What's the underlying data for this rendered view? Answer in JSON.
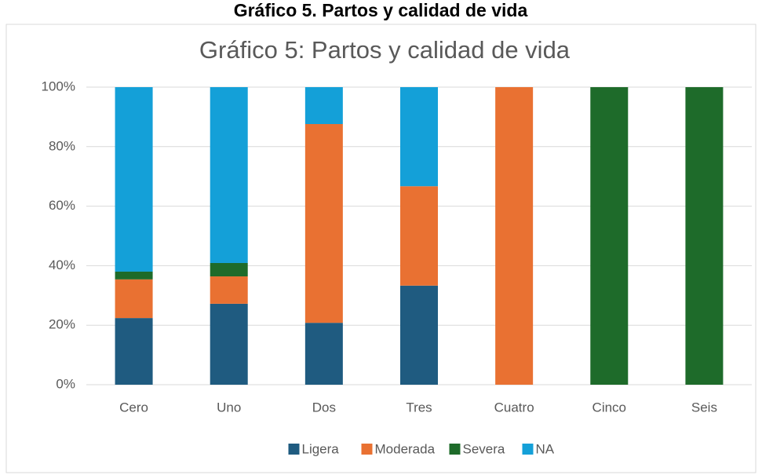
{
  "page_title": "Gráfico 5. Partos y calidad de vida",
  "chart_data": {
    "type": "stacked_bar",
    "title": "Gráfico 5: Partos y calidad de vida",
    "categories": [
      "Cero",
      "Uno",
      "Dos",
      "Tres",
      "Cuatro",
      "Cinco",
      "Seis"
    ],
    "series": [
      {
        "name": "Ligera",
        "color": "#1f5b80",
        "values": [
          22.4,
          27.2,
          20.8,
          33.3,
          0,
          0,
          0
        ]
      },
      {
        "name": "Moderada",
        "color": "#e97132",
        "values": [
          13,
          9.2,
          66.8,
          33.4,
          100,
          0,
          0
        ]
      },
      {
        "name": "Severa",
        "color": "#1e6b2a",
        "values": [
          2.6,
          4.5,
          0,
          0,
          0,
          100,
          100
        ]
      },
      {
        "name": "NA",
        "color": "#14a0d8",
        "values": [
          62,
          59.1,
          12.4,
          33.3,
          0,
          0,
          0
        ]
      }
    ],
    "ylim": [
      0,
      100
    ],
    "yticks": [
      {
        "value": 0,
        "label": "0%"
      },
      {
        "value": 20,
        "label": "20%"
      },
      {
        "value": 40,
        "label": "40%"
      },
      {
        "value": 60,
        "label": "60%"
      },
      {
        "value": 80,
        "label": "80%"
      },
      {
        "value": 100,
        "label": "100%"
      }
    ],
    "grid": true,
    "legend": "bottom"
  }
}
